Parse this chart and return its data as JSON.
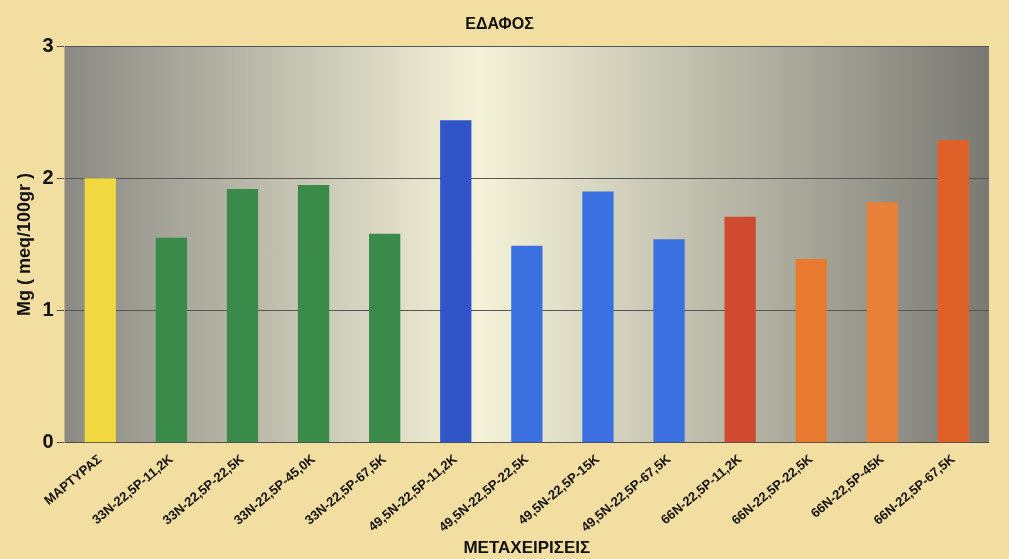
{
  "chart_data": {
    "type": "bar",
    "title": "ΕΔΑΦΟΣ",
    "xlabel": "ΜΕΤΑΧΕΙΡΙΣΕΙΣ",
    "ylabel": "Mg ( meq/100gr )",
    "categories": [
      "ΜΑΡΤΥΡΑΣ",
      "33N-22,5P-11,2K",
      "33N-22,5P-22,5K",
      "33N-22,5P-45,0K",
      "33N-22,5P-67,5K",
      "49,5N-22,5P-11,2K",
      "49,5N-22,5P-22,5K",
      "49,5N-22,5P-15K",
      "49,5N-22,5P-67,5K",
      "66N-22,5P-11,2K",
      "66N-22,5P-22,5K",
      "66N-22,5P-45K",
      "66N-22,5P-67,5K"
    ],
    "values": [
      2.0,
      1.55,
      1.92,
      1.95,
      1.58,
      2.44,
      1.49,
      1.9,
      1.54,
      1.71,
      1.39,
      1.82,
      2.29
    ],
    "colors": [
      "#f0d840",
      "#3a8a4a",
      "#3a8a4a",
      "#3a8a4a",
      "#3a8a4a",
      "#2f55c8",
      "#3a70e0",
      "#3a70e0",
      "#3a70e0",
      "#d04a30",
      "#e87a30",
      "#e8803a",
      "#e0602a"
    ],
    "ylim": [
      0,
      3
    ],
    "yticks": [
      0,
      1,
      2,
      3
    ],
    "grid": "y"
  }
}
